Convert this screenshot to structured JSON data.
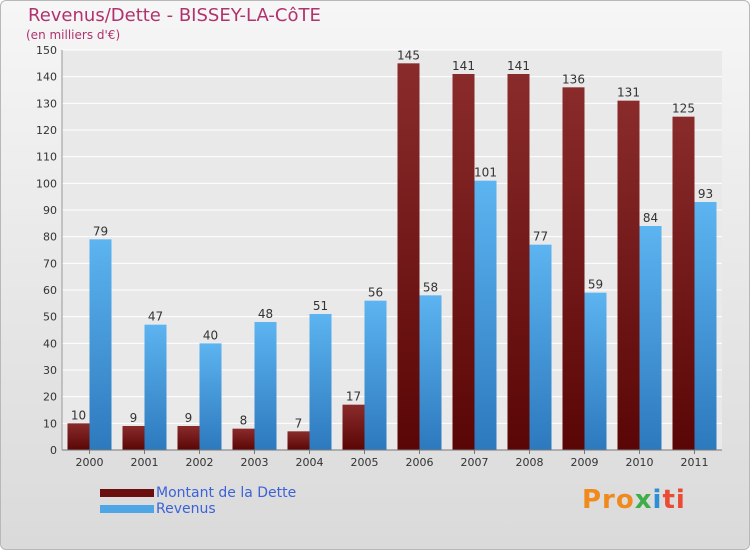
{
  "title": "Revenus/Dette - BISSEY-LA-CôTE",
  "subtitle": "(en milliers d'€)",
  "logo": {
    "p1": "Pro",
    "p2": "x",
    "p3": "i",
    "p4": "ti"
  },
  "colors": {
    "dette": "#7a1a1a",
    "revenus": "#4ea6e6",
    "title": "#b0326e",
    "legend_text": "#3c62d8"
  },
  "chart_data": {
    "type": "bar",
    "categories": [
      "2000",
      "2001",
      "2002",
      "2003",
      "2004",
      "2005",
      "2006",
      "2007",
      "2008",
      "2009",
      "2010",
      "2011"
    ],
    "series": [
      {
        "name": "Montant de la Dette",
        "values": [
          10,
          9,
          9,
          8,
          7,
          17,
          145,
          141,
          141,
          136,
          131,
          125
        ]
      },
      {
        "name": "Revenus",
        "values": [
          79,
          47,
          40,
          48,
          51,
          56,
          58,
          101,
          77,
          59,
          84,
          93
        ]
      }
    ],
    "ylim": [
      0,
      150
    ],
    "yticks": [
      0,
      10,
      20,
      30,
      40,
      50,
      60,
      70,
      80,
      90,
      100,
      110,
      120,
      130,
      140,
      150
    ],
    "grid": true,
    "legend": "bottom-left"
  }
}
